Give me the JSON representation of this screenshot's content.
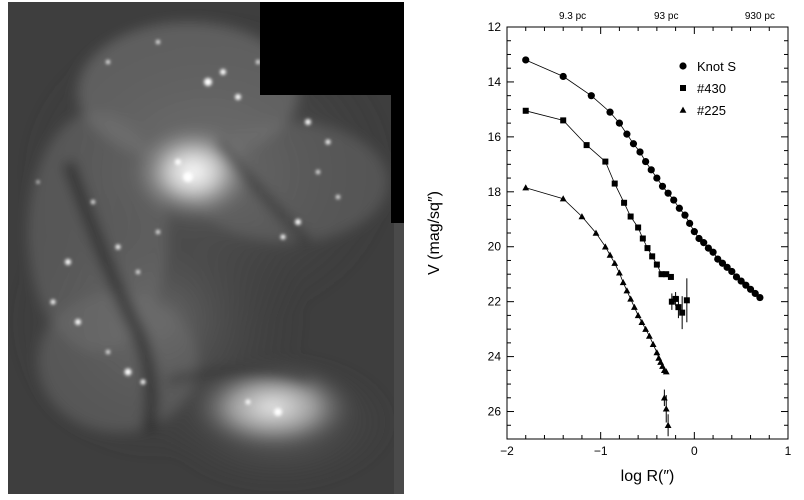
{
  "image_panel": {
    "subject": "greyscale galaxy image"
  },
  "chart_data": {
    "type": "scatter",
    "title": "",
    "xlabel": "log R(″)",
    "ylabel": "V (mag/sq″)",
    "xlim": [
      -2,
      1
    ],
    "ylim": [
      27,
      12
    ],
    "y_inverted": true,
    "x_ticks": [
      "−2",
      "−1",
      "0",
      "1"
    ],
    "y_ticks": [
      "12",
      "14",
      "16",
      "18",
      "20",
      "22",
      "24",
      "26"
    ],
    "top_axis_labels": [
      {
        "x": -1.3,
        "label": "9.3 pc"
      },
      {
        "x": -0.3,
        "label": "93 pc"
      },
      {
        "x": 0.7,
        "label": "930 pc"
      }
    ],
    "legend_position": "top-right",
    "series": [
      {
        "name": "Knot S",
        "marker": "circle",
        "connected": true,
        "x": [
          -1.8,
          -1.4,
          -1.1,
          -0.9,
          -0.8,
          -0.72,
          -0.65,
          -0.58,
          -0.52,
          -0.46,
          -0.4,
          -0.34,
          -0.28,
          -0.22,
          -0.16,
          -0.1,
          -0.05,
          0.0,
          0.05,
          0.1,
          0.15,
          0.2,
          0.25,
          0.3,
          0.35,
          0.4,
          0.45,
          0.5,
          0.55,
          0.6,
          0.65,
          0.7
        ],
        "y": [
          13.2,
          13.8,
          14.5,
          15.1,
          15.5,
          15.9,
          16.25,
          16.55,
          16.9,
          17.2,
          17.5,
          17.8,
          18.05,
          18.3,
          18.6,
          18.85,
          19.15,
          19.45,
          19.7,
          19.85,
          20.05,
          20.2,
          20.45,
          20.6,
          20.75,
          20.9,
          21.1,
          21.25,
          21.4,
          21.55,
          21.7,
          21.85
        ]
      },
      {
        "name": "#430",
        "marker": "square",
        "connected": true,
        "x": [
          -1.8,
          -1.4,
          -1.15,
          -0.95,
          -0.85,
          -0.75,
          -0.68,
          -0.6,
          -0.55,
          -0.5,
          -0.45,
          -0.4,
          -0.35,
          -0.3,
          -0.25
        ],
        "y": [
          15.05,
          15.4,
          16.3,
          16.9,
          17.7,
          18.4,
          18.9,
          19.3,
          19.7,
          20.05,
          20.35,
          20.65,
          21.0,
          21.0,
          21.1
        ],
        "extra_points": {
          "x": [
            -0.24,
            -0.2,
            -0.17,
            -0.13,
            -0.08
          ],
          "y": [
            22.0,
            21.9,
            22.2,
            22.4,
            21.95
          ],
          "y_errors": [
            0.3,
            0.25,
            0.4,
            0.6,
            0.8
          ]
        }
      },
      {
        "name": "#225",
        "marker": "triangle",
        "connected": true,
        "x": [
          -1.8,
          -1.4,
          -1.2,
          -1.05,
          -0.95,
          -0.9,
          -0.85,
          -0.8,
          -0.76,
          -0.72,
          -0.68,
          -0.64,
          -0.6,
          -0.56,
          -0.52,
          -0.48,
          -0.44,
          -0.4,
          -0.38,
          -0.36,
          -0.34,
          -0.32,
          -0.3
        ],
        "y": [
          17.85,
          18.25,
          18.9,
          19.5,
          20.0,
          20.3,
          20.6,
          20.95,
          21.3,
          21.6,
          21.9,
          22.2,
          22.5,
          22.75,
          23.0,
          23.25,
          23.55,
          23.85,
          24.05,
          24.2,
          24.35,
          24.5,
          24.55
        ],
        "extra_points": {
          "x": [
            -0.32,
            -0.3,
            -0.28
          ],
          "y": [
            25.5,
            25.9,
            26.5
          ],
          "y_errors": [
            0.3,
            0.5,
            0.4
          ]
        }
      }
    ]
  }
}
